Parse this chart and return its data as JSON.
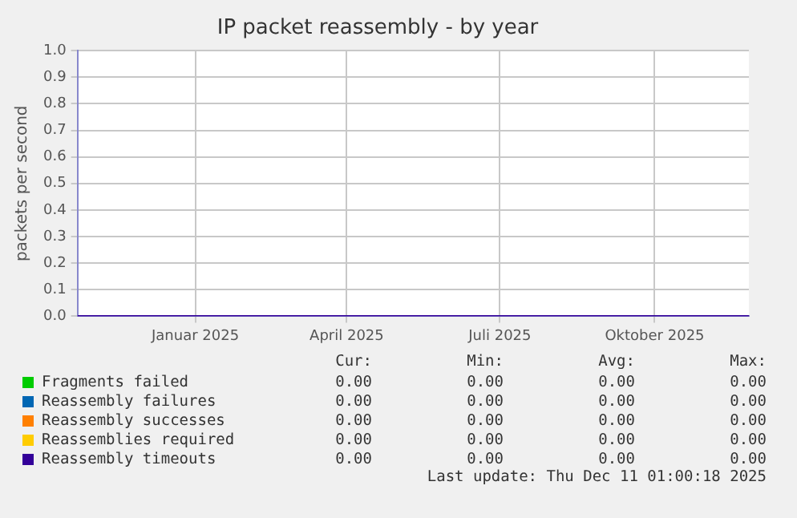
{
  "chart_data": {
    "type": "line",
    "title": "IP packet reassembly - by year",
    "ylabel": "packets per second",
    "x": [
      "2024-11-07",
      "2025-01-01",
      "2025-04-01",
      "2025-07-01",
      "2025-10-01",
      "2025-12-11"
    ],
    "xlim": [
      "2024-11-07",
      "2025-12-11"
    ],
    "xticks": [
      {
        "value": "2025-01-16",
        "label": "Januar 2025"
      },
      {
        "value": "2025-04-16",
        "label": "April 2025"
      },
      {
        "value": "2025-07-16",
        "label": "Juli 2025"
      },
      {
        "value": "2025-10-16",
        "label": "Oktober 2025"
      }
    ],
    "ylim": [
      0,
      1
    ],
    "yticks": [
      {
        "value": 0,
        "label": "0.0"
      },
      {
        "value": 0.1,
        "label": "0.1"
      },
      {
        "value": 0.2,
        "label": "0.2"
      },
      {
        "value": 0.3,
        "label": "0.3"
      },
      {
        "value": 0.4,
        "label": "0.4"
      },
      {
        "value": 0.5,
        "label": "0.5"
      },
      {
        "value": 0.6,
        "label": "0.6"
      },
      {
        "value": 0.7,
        "label": "0.7"
      },
      {
        "value": 0.8,
        "label": "0.8"
      },
      {
        "value": 0.9,
        "label": "0.9"
      },
      {
        "value": 1,
        "label": "1.0"
      }
    ],
    "series": [
      {
        "name": "Fragments failed",
        "color": "#00cc00",
        "values": [
          null,
          null,
          null,
          null,
          null,
          null
        ]
      },
      {
        "name": "Reassembly failures",
        "color": "#0066b3",
        "values": [
          null,
          null,
          null,
          null,
          null,
          null
        ]
      },
      {
        "name": "Reassembly successes",
        "color": "#ff8000",
        "values": [
          null,
          null,
          null,
          null,
          null,
          null
        ]
      },
      {
        "name": "Reassemblies required",
        "color": "#ffcc00",
        "values": [
          null,
          null,
          null,
          null,
          null,
          null
        ]
      },
      {
        "name": "Reassembly timeouts",
        "color": "#330099",
        "values": [
          0,
          0,
          0,
          0,
          0,
          0
        ]
      }
    ],
    "grid": true,
    "legend": "bottom",
    "marker": "none",
    "line_style": "solid",
    "annotations": [
      "Cur:",
      "Min:",
      "Avg:",
      "Max:",
      "0.00",
      "0.00",
      "0.00",
      "0.00",
      "0.00",
      "0.00",
      "0.00",
      "0.00",
      "0.00",
      "0.00",
      "0.00",
      "0.00",
      "0.00",
      "0.00",
      "0.00",
      "0.00",
      "0.00",
      "0.00",
      "0.00",
      "0.00",
      "Last update: Thu Dec 11 01:00:18 2025"
    ]
  }
}
